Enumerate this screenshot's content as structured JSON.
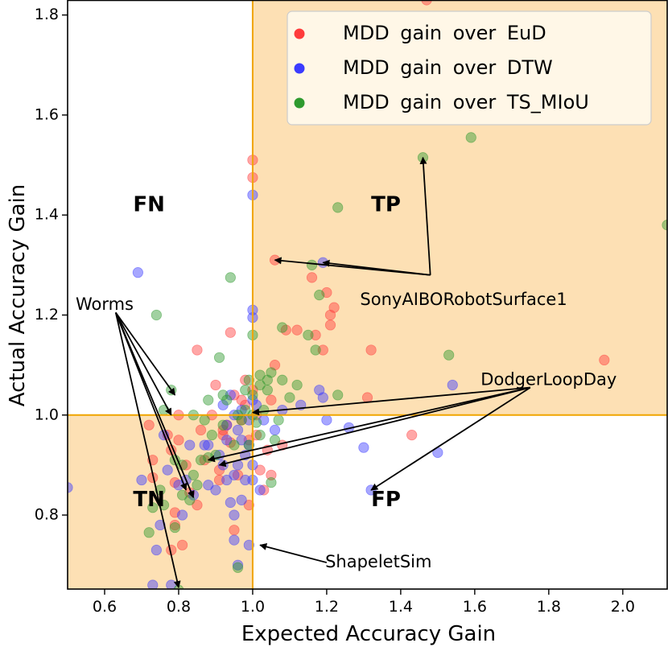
{
  "colors": {
    "quadrant_fill": "#fde0b4",
    "axis_line": "#f0a500",
    "eud": "#ff3b3b",
    "dtw": "#3b3bff",
    "tsmiou": "#2e9a2e"
  },
  "chart_data": {
    "type": "scatter",
    "title": "",
    "xlabel": "Expected Accuracy Gain",
    "ylabel": "Actual Accuracy Gain",
    "xlim": [
      0.5,
      2.12
    ],
    "ylim": [
      0.652,
      1.83
    ],
    "x_ticks": [
      0.6,
      0.8,
      1.0,
      1.2,
      1.4,
      1.6,
      1.8,
      2.0
    ],
    "x_tick_labels": [
      "0.6",
      "0.8",
      "1.0",
      "1.2",
      "1.4",
      "1.6",
      "1.8",
      "2.0"
    ],
    "y_ticks": [
      0.8,
      1.0,
      1.2,
      1.4,
      1.6,
      1.8
    ],
    "y_tick_labels": [
      "0.8",
      "1.0",
      "1.2",
      "1.4",
      "1.6",
      "1.8"
    ],
    "reference_lines": {
      "x": 1.0,
      "y": 1.0
    },
    "grid": false,
    "legend_position": "top-right",
    "quadrants": [
      {
        "label": "FN",
        "x": 0.72,
        "y": 1.42
      },
      {
        "label": "TP",
        "x": 1.36,
        "y": 1.42
      },
      {
        "label": "TN",
        "x": 0.72,
        "y": 0.83
      },
      {
        "label": "FP",
        "x": 1.36,
        "y": 0.83
      }
    ],
    "series": [
      {
        "name": "MDD gain over EuD",
        "points": [
          [
            1.47,
            1.83
          ],
          [
            1.0,
            1.51
          ],
          [
            1.0,
            1.475
          ],
          [
            1.06,
            1.31
          ],
          [
            1.16,
            1.275
          ],
          [
            1.2,
            1.245
          ],
          [
            1.17,
            1.16
          ],
          [
            1.19,
            1.13
          ],
          [
            1.21,
            1.2
          ],
          [
            1.21,
            1.18
          ],
          [
            1.22,
            1.215
          ],
          [
            1.32,
            1.13
          ],
          [
            1.95,
            1.11
          ],
          [
            1.09,
            1.17
          ],
          [
            1.12,
            1.17
          ],
          [
            1.06,
            1.1
          ],
          [
            0.85,
            1.13
          ],
          [
            0.94,
            1.165
          ],
          [
            1.31,
            1.035
          ],
          [
            1.43,
            0.96
          ],
          [
            0.9,
            1.06
          ],
          [
            0.95,
            1.04
          ],
          [
            1.0,
            1.05
          ],
          [
            1.05,
            1.03
          ],
          [
            0.98,
            1.02
          ],
          [
            0.97,
            0.99
          ],
          [
            0.93,
            0.98
          ],
          [
            0.8,
            1.0
          ],
          [
            0.72,
            0.98
          ],
          [
            0.77,
            0.96
          ],
          [
            0.8,
            0.95
          ],
          [
            0.86,
            0.97
          ],
          [
            0.92,
            0.97
          ],
          [
            0.99,
            0.95
          ],
          [
            1.01,
            0.96
          ],
          [
            1.04,
            0.93
          ],
          [
            1.08,
            0.94
          ],
          [
            0.78,
            0.93
          ],
          [
            0.73,
            0.91
          ],
          [
            0.82,
            0.9
          ],
          [
            0.87,
            0.91
          ],
          [
            0.91,
            0.89
          ],
          [
            0.96,
            0.88
          ],
          [
            1.02,
            0.89
          ],
          [
            1.05,
            0.88
          ],
          [
            0.73,
            0.875
          ],
          [
            0.79,
            0.865
          ],
          [
            0.91,
            0.87
          ],
          [
            0.83,
            0.845
          ],
          [
            0.85,
            0.82
          ],
          [
            0.99,
            0.82
          ],
          [
            1.03,
            0.85
          ],
          [
            0.79,
            0.78
          ],
          [
            0.79,
            0.805
          ],
          [
            0.78,
            0.73
          ],
          [
            0.81,
            0.74
          ],
          [
            0.95,
            0.77
          ],
          [
            0.94,
            0.945
          ],
          [
            0.98,
            1.07
          ],
          [
            1.01,
            1.0
          ],
          [
            0.97,
            1.03
          ],
          [
            0.89,
            1.0
          ],
          [
            0.92,
            0.96
          ]
        ]
      },
      {
        "name": "MDD gain over DTW",
        "points": [
          [
            0.69,
            1.285
          ],
          [
            1.0,
            1.44
          ],
          [
            1.19,
            1.305
          ],
          [
            1.0,
            1.21
          ],
          [
            1.0,
            1.195
          ],
          [
            1.54,
            1.06
          ],
          [
            1.5,
            0.925
          ],
          [
            1.32,
            0.85
          ],
          [
            1.3,
            0.935
          ],
          [
            1.26,
            0.975
          ],
          [
            1.2,
            0.99
          ],
          [
            1.18,
            1.05
          ],
          [
            1.19,
            1.035
          ],
          [
            1.13,
            1.02
          ],
          [
            1.08,
            1.01
          ],
          [
            0.99,
            0.94
          ],
          [
            0.98,
            0.92
          ],
          [
            0.96,
            0.9
          ],
          [
            0.95,
            0.88
          ],
          [
            1.0,
            0.87
          ],
          [
            1.0,
            0.9
          ],
          [
            1.02,
            0.85
          ],
          [
            0.97,
            0.83
          ],
          [
            0.95,
            0.8
          ],
          [
            0.94,
            0.825
          ],
          [
            0.9,
            0.85
          ],
          [
            0.93,
            0.87
          ],
          [
            0.88,
            0.86
          ],
          [
            0.84,
            0.84
          ],
          [
            0.82,
            0.87
          ],
          [
            0.8,
            0.86
          ],
          [
            0.77,
            0.89
          ],
          [
            0.76,
            0.96
          ],
          [
            0.7,
            0.87
          ],
          [
            0.75,
            0.78
          ],
          [
            0.74,
            0.73
          ],
          [
            0.73,
            0.66
          ],
          [
            0.78,
            0.66
          ],
          [
            0.81,
            0.8
          ],
          [
            0.83,
            0.94
          ],
          [
            0.87,
            0.94
          ],
          [
            0.91,
            0.92
          ],
          [
            0.93,
            0.95
          ],
          [
            0.96,
            0.97
          ],
          [
            0.97,
            1.01
          ],
          [
            1.0,
            1.03
          ],
          [
            0.94,
            1.04
          ],
          [
            0.95,
            1.0
          ],
          [
            0.92,
            1.02
          ],
          [
            1.06,
            0.97
          ],
          [
            1.03,
            0.99
          ],
          [
            0.98,
            0.87
          ],
          [
            0.99,
            0.74
          ],
          [
            0.95,
            0.75
          ],
          [
            0.96,
            0.7
          ],
          [
            0.5,
            0.855
          ],
          [
            0.92,
            0.9
          ],
          [
            0.88,
            0.94
          ],
          [
            0.99,
            0.99
          ],
          [
            1.01,
            1.02
          ],
          [
            0.97,
            0.95
          ],
          [
            0.93,
            0.98
          ]
        ]
      },
      {
        "name": "MDD gain over TS_MIoU",
        "points": [
          [
            1.59,
            1.555
          ],
          [
            1.46,
            1.515
          ],
          [
            2.12,
            1.38
          ],
          [
            1.23,
            1.415
          ],
          [
            0.94,
            1.275
          ],
          [
            1.18,
            1.24
          ],
          [
            1.16,
            1.3
          ],
          [
            0.74,
            1.2
          ],
          [
            1.0,
            1.16
          ],
          [
            1.08,
            1.175
          ],
          [
            1.15,
            1.16
          ],
          [
            1.17,
            1.13
          ],
          [
            1.53,
            1.12
          ],
          [
            1.05,
            1.085
          ],
          [
            1.08,
            1.07
          ],
          [
            1.04,
            1.07
          ],
          [
            1.02,
            1.06
          ],
          [
            1.12,
            1.06
          ],
          [
            1.0,
            1.04
          ],
          [
            1.1,
            1.035
          ],
          [
            1.23,
            1.04
          ],
          [
            0.92,
            1.04
          ],
          [
            0.93,
            1.03
          ],
          [
            0.88,
            1.03
          ],
          [
            0.78,
            1.05
          ],
          [
            0.76,
            1.01
          ],
          [
            0.84,
            1.0
          ],
          [
            0.87,
            0.99
          ],
          [
            0.92,
            0.98
          ],
          [
            0.89,
            0.96
          ],
          [
            0.9,
            0.92
          ],
          [
            0.88,
            0.915
          ],
          [
            0.86,
            0.91
          ],
          [
            0.81,
            0.9
          ],
          [
            0.79,
            0.91
          ],
          [
            0.84,
            0.88
          ],
          [
            0.85,
            0.86
          ],
          [
            0.83,
            0.83
          ],
          [
            0.81,
            0.84
          ],
          [
            0.75,
            0.85
          ],
          [
            0.76,
            0.82
          ],
          [
            0.73,
            0.815
          ],
          [
            0.72,
            0.765
          ],
          [
            0.79,
            0.775
          ],
          [
            0.8,
            0.65
          ],
          [
            0.96,
            0.695
          ],
          [
            0.99,
            0.94
          ],
          [
            0.95,
            0.94
          ],
          [
            1.02,
            0.96
          ],
          [
            1.05,
            0.865
          ],
          [
            1.06,
            0.95
          ],
          [
            1.07,
            0.99
          ],
          [
            1.03,
            1.01
          ],
          [
            0.96,
            1.0
          ],
          [
            0.98,
            1.01
          ],
          [
            1.0,
            1.0
          ],
          [
            1.01,
            0.985
          ],
          [
            0.97,
            0.99
          ],
          [
            1.04,
            1.05
          ],
          [
            0.99,
            1.07
          ],
          [
            1.02,
            1.08
          ],
          [
            0.98,
            1.05
          ],
          [
            0.91,
            1.115
          ]
        ]
      }
    ],
    "annotations": [
      {
        "text": "SonyAIBORobotSurface1",
        "text_x": 1.57,
        "text_y": 1.23,
        "anchor_x": 1.48,
        "anchor_y": 1.28,
        "targets": [
          [
            1.46,
            1.515
          ],
          [
            1.06,
            1.31
          ],
          [
            1.19,
            1.305
          ]
        ]
      },
      {
        "text": "Worms",
        "text_x": 0.6,
        "text_y": 1.22,
        "anchor_x": 0.63,
        "anchor_y": 1.205,
        "targets": [
          [
            0.79,
            1.04
          ],
          [
            0.78,
            1.0
          ],
          [
            0.82,
            0.85
          ],
          [
            0.84,
            0.835
          ],
          [
            0.8,
            0.655
          ]
        ]
      },
      {
        "text": "DodgerLoopDay",
        "text_x": 1.8,
        "text_y": 1.07,
        "anchor_x": 1.75,
        "anchor_y": 1.055,
        "targets": [
          [
            1.0,
            1.005
          ],
          [
            0.91,
            0.9
          ],
          [
            0.88,
            0.91
          ],
          [
            1.32,
            0.85
          ]
        ]
      },
      {
        "text": "ShapeletSim",
        "text_x": 1.34,
        "text_y": 0.705,
        "anchor_x": 1.2,
        "anchor_y": 0.705,
        "targets": [
          [
            1.02,
            0.74
          ]
        ]
      }
    ]
  }
}
